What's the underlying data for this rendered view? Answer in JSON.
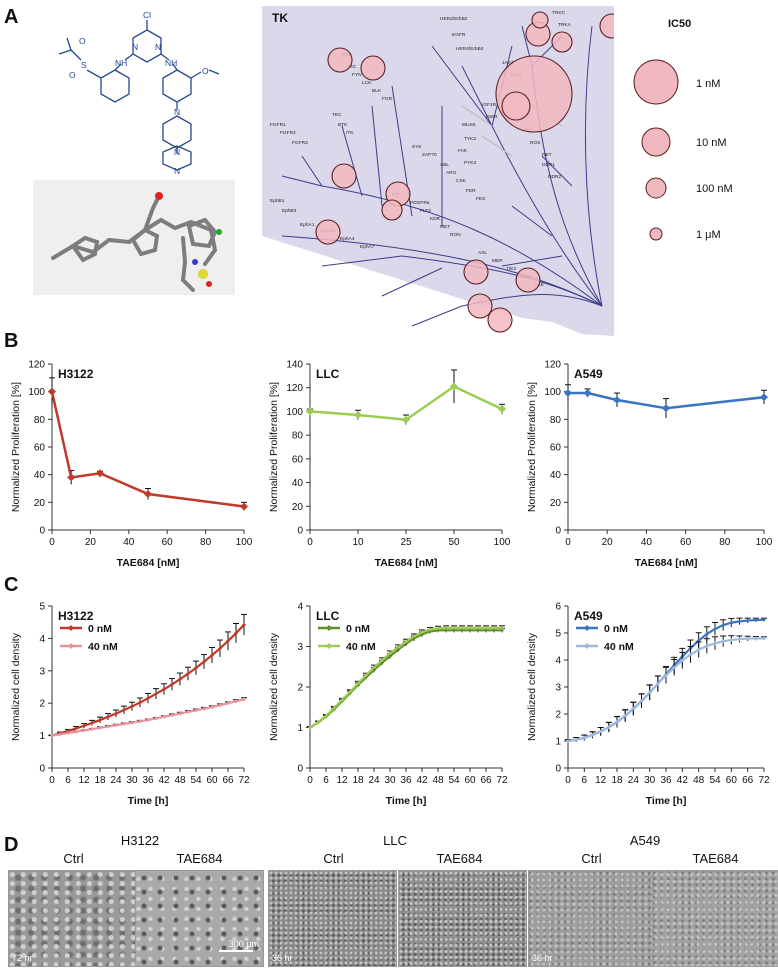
{
  "panel_letters": {
    "a": "A",
    "b": "B",
    "c": "C",
    "d": "D"
  },
  "colors": {
    "red": "#c0392b",
    "pink": "#e8939a",
    "green_dark": "#5e8f2c",
    "green_light": "#9ccc54",
    "blue_dark": "#3a75c4",
    "blue_light": "#9fb8e0",
    "tree_bg": "#dcd8ec",
    "bubble": "#f2b8c0"
  },
  "structure": {
    "atom_cl": "Cl",
    "atom_n1": "N",
    "atom_n2": "N",
    "atom_nh1": "NH",
    "atom_nh2": "NH",
    "atom_o": "O",
    "atom_o2": "O",
    "atom_s": "S",
    "atom_o3": "O",
    "atom_n3": "N",
    "atom_n4": "N",
    "atom_n5": "N"
  },
  "kinome": {
    "title": "TK",
    "legend_title": "IC50",
    "legend": [
      "1 nM",
      "10 nM",
      "100 nM",
      "1 μM"
    ],
    "kinases": [
      "HER2/ErbB2",
      "EGFR",
      "HER4/ErbB4",
      "JAK3",
      "JAK2",
      "TRKC",
      "TRKA",
      "LTK",
      "ALK",
      "ROS",
      "RET",
      "IGF1R",
      "INSR",
      "DDR1",
      "DDR2",
      "MUSK",
      "TYK2",
      "FAK",
      "PYK2",
      "FGFR1",
      "FGFR2",
      "FGFR3",
      "YES",
      "SRC",
      "FYN",
      "LCK",
      "BLK",
      "FGR",
      "TEC",
      "BTK",
      "ITK",
      "SYK",
      "ZAP70",
      "ABL",
      "ARG",
      "CSK",
      "FER",
      "FES",
      "EphA1",
      "EphA2",
      "EphA4",
      "EphA7",
      "EphB1",
      "EphB3",
      "KIT",
      "PDGFRa",
      "FLT3",
      "KDR",
      "MET",
      "RON",
      "AXL",
      "MER",
      "TIE2",
      "TNK1",
      "ACK"
    ]
  },
  "chart_data": [
    {
      "id": "B-H3122",
      "type": "line",
      "title": "H3122",
      "xlabel": "TAE684 [nM]",
      "ylabel": "Normalized Proliferation [%]",
      "x": [
        0,
        10,
        25,
        50,
        100
      ],
      "xticks": [
        0,
        20,
        40,
        60,
        80,
        100
      ],
      "xlim": [
        0,
        100
      ],
      "ylim": [
        0,
        120
      ],
      "yticks": [
        0,
        20,
        40,
        60,
        80,
        100,
        120
      ],
      "series": [
        {
          "name": "H3122",
          "values": [
            100,
            38,
            41,
            26,
            17
          ],
          "errors": [
            10,
            5,
            1.5,
            4,
            3
          ]
        }
      ]
    },
    {
      "id": "B-LLC",
      "type": "line",
      "title": "LLC",
      "xlabel": "TAE684 [nM]",
      "ylabel": "Normalized Proliferation [%]",
      "x": [
        0,
        10,
        25,
        50,
        100
      ],
      "categories": [
        "0",
        "10",
        "25",
        "50",
        "100"
      ],
      "ylim": [
        0,
        140
      ],
      "yticks": [
        0,
        20,
        40,
        60,
        80,
        100,
        120,
        140
      ],
      "series": [
        {
          "name": "LLC",
          "values": [
            100,
            97,
            93,
            121,
            102
          ],
          "errors": [
            2,
            4,
            4,
            14,
            4
          ]
        }
      ]
    },
    {
      "id": "B-A549",
      "type": "line",
      "title": "A549",
      "xlabel": "TAE684 [nM]",
      "ylabel": "Normalized Proliferation [%]",
      "x": [
        0,
        10,
        25,
        50,
        100
      ],
      "xticks": [
        0,
        20,
        40,
        60,
        80,
        100
      ],
      "xlim": [
        0,
        100
      ],
      "ylim": [
        0,
        120
      ],
      "yticks": [
        0,
        20,
        40,
        60,
        80,
        100,
        120
      ],
      "series": [
        {
          "name": "A549",
          "values": [
            99,
            99,
            94,
            88,
            96
          ],
          "errors": [
            6,
            3,
            5,
            7,
            5
          ]
        }
      ]
    },
    {
      "id": "C-H3122",
      "type": "line",
      "title": "H3122",
      "xlabel": "Time [h]",
      "ylabel": "Normalized cell density",
      "x": [
        0,
        3,
        6,
        9,
        12,
        15,
        18,
        21,
        24,
        27,
        30,
        33,
        36,
        39,
        42,
        45,
        48,
        51,
        54,
        57,
        60,
        63,
        66,
        69,
        72
      ],
      "xticks": [
        0,
        6,
        12,
        18,
        24,
        30,
        36,
        42,
        48,
        54,
        60,
        66,
        72
      ],
      "xlim": [
        0,
        72
      ],
      "ylim": [
        0,
        5
      ],
      "yticks": [
        0,
        1,
        2,
        3,
        4,
        5
      ],
      "series": [
        {
          "name": "0 nM",
          "values": [
            1.0,
            1.07,
            1.14,
            1.22,
            1.3,
            1.39,
            1.48,
            1.58,
            1.68,
            1.79,
            1.9,
            2.02,
            2.15,
            2.29,
            2.43,
            2.58,
            2.74,
            2.91,
            3.09,
            3.28,
            3.48,
            3.69,
            3.92,
            4.16,
            4.42
          ],
          "errors": [
            0.02,
            0.04,
            0.05,
            0.06,
            0.07,
            0.08,
            0.09,
            0.1,
            0.11,
            0.12,
            0.13,
            0.14,
            0.15,
            0.16,
            0.17,
            0.18,
            0.19,
            0.2,
            0.21,
            0.22,
            0.24,
            0.26,
            0.28,
            0.3,
            0.32
          ]
        },
        {
          "name": "40 nM",
          "values": [
            1.0,
            1.04,
            1.08,
            1.12,
            1.16,
            1.2,
            1.24,
            1.28,
            1.32,
            1.36,
            1.4,
            1.44,
            1.48,
            1.53,
            1.58,
            1.63,
            1.68,
            1.73,
            1.78,
            1.83,
            1.88,
            1.94,
            2.0,
            2.06,
            2.12
          ],
          "errors": [
            0.01,
            0.02,
            0.02,
            0.02,
            0.02,
            0.02,
            0.03,
            0.03,
            0.03,
            0.03,
            0.03,
            0.03,
            0.03,
            0.03,
            0.03,
            0.04,
            0.04,
            0.04,
            0.04,
            0.04,
            0.04,
            0.04,
            0.04,
            0.05,
            0.05
          ]
        }
      ]
    },
    {
      "id": "C-LLC",
      "type": "line",
      "title": "LLC",
      "xlabel": "Time [h]",
      "ylabel": "Normalized cell density",
      "x": [
        0,
        3,
        6,
        9,
        12,
        15,
        18,
        21,
        24,
        27,
        30,
        33,
        36,
        39,
        42,
        45,
        48,
        51,
        54,
        57,
        60,
        63,
        66,
        69,
        72
      ],
      "xticks": [
        0,
        6,
        12,
        18,
        24,
        30,
        36,
        42,
        48,
        54,
        60,
        66,
        72
      ],
      "xlim": [
        0,
        72
      ],
      "ylim": [
        0,
        4
      ],
      "yticks": [
        0,
        1,
        2,
        3,
        4
      ],
      "series": [
        {
          "name": "0 nM",
          "values": [
            1.0,
            1.12,
            1.27,
            1.45,
            1.65,
            1.85,
            2.05,
            2.24,
            2.42,
            2.6,
            2.76,
            2.92,
            3.07,
            3.2,
            3.3,
            3.37,
            3.4,
            3.4,
            3.4,
            3.4,
            3.4,
            3.4,
            3.4,
            3.4,
            3.4
          ],
          "errors": [
            0.02,
            0.03,
            0.03,
            0.04,
            0.04,
            0.05,
            0.05,
            0.05,
            0.06,
            0.06,
            0.06,
            0.06,
            0.06,
            0.06,
            0.06,
            0.05,
            0.05,
            0.05,
            0.05,
            0.05,
            0.05,
            0.05,
            0.05,
            0.05,
            0.05
          ]
        },
        {
          "name": "40 nM",
          "values": [
            1.0,
            1.13,
            1.29,
            1.48,
            1.68,
            1.88,
            2.09,
            2.29,
            2.48,
            2.66,
            2.83,
            2.98,
            3.12,
            3.25,
            3.35,
            3.42,
            3.45,
            3.46,
            3.46,
            3.46,
            3.46,
            3.46,
            3.46,
            3.46,
            3.46
          ],
          "errors": [
            0.02,
            0.03,
            0.03,
            0.04,
            0.04,
            0.05,
            0.05,
            0.05,
            0.06,
            0.06,
            0.06,
            0.06,
            0.06,
            0.06,
            0.06,
            0.05,
            0.05,
            0.05,
            0.05,
            0.05,
            0.05,
            0.05,
            0.05,
            0.05,
            0.05
          ]
        }
      ]
    },
    {
      "id": "C-A549",
      "type": "line",
      "title": "A549",
      "xlabel": "Time [h]",
      "ylabel": "Normalized cell density",
      "x": [
        0,
        3,
        6,
        9,
        12,
        15,
        18,
        21,
        24,
        27,
        30,
        33,
        36,
        39,
        42,
        45,
        48,
        51,
        54,
        57,
        60,
        63,
        66,
        69,
        72
      ],
      "xticks": [
        0,
        6,
        12,
        18,
        24,
        30,
        36,
        42,
        48,
        54,
        60,
        66,
        72
      ],
      "xlim": [
        0,
        72
      ],
      "ylim": [
        0,
        6
      ],
      "yticks": [
        0,
        1,
        2,
        3,
        4,
        5,
        6
      ],
      "series": [
        {
          "name": "0 nM",
          "values": [
            1.0,
            1.05,
            1.12,
            1.22,
            1.35,
            1.51,
            1.7,
            1.93,
            2.19,
            2.48,
            2.79,
            3.12,
            3.46,
            3.8,
            4.13,
            4.44,
            4.72,
            4.96,
            5.15,
            5.29,
            5.38,
            5.43,
            5.46,
            5.48,
            5.49
          ],
          "errors": [
            0.05,
            0.08,
            0.1,
            0.12,
            0.15,
            0.18,
            0.2,
            0.22,
            0.24,
            0.26,
            0.28,
            0.29,
            0.3,
            0.3,
            0.3,
            0.3,
            0.29,
            0.27,
            0.24,
            0.2,
            0.16,
            0.12,
            0.09,
            0.07,
            0.06
          ]
        },
        {
          "name": "40 nM",
          "values": [
            1.0,
            1.05,
            1.12,
            1.22,
            1.35,
            1.51,
            1.71,
            1.94,
            2.2,
            2.49,
            2.8,
            3.12,
            3.43,
            3.72,
            3.98,
            4.2,
            4.38,
            4.52,
            4.62,
            4.69,
            4.74,
            4.77,
            4.79,
            4.8,
            4.8
          ],
          "errors": [
            0.05,
            0.08,
            0.1,
            0.12,
            0.15,
            0.18,
            0.2,
            0.22,
            0.24,
            0.26,
            0.28,
            0.29,
            0.3,
            0.3,
            0.3,
            0.3,
            0.29,
            0.27,
            0.24,
            0.2,
            0.16,
            0.12,
            0.09,
            0.07,
            0.06
          ]
        }
      ]
    }
  ],
  "micrographs": {
    "groups": [
      "H3122",
      "LLC",
      "A549"
    ],
    "conditions": [
      "Ctrl",
      "TAE684",
      "Ctrl",
      "TAE684",
      "Ctrl",
      "TAE684"
    ],
    "times": [
      "72 hr",
      "36 hr",
      "36 hr"
    ],
    "scale_bar": "300 μm"
  }
}
